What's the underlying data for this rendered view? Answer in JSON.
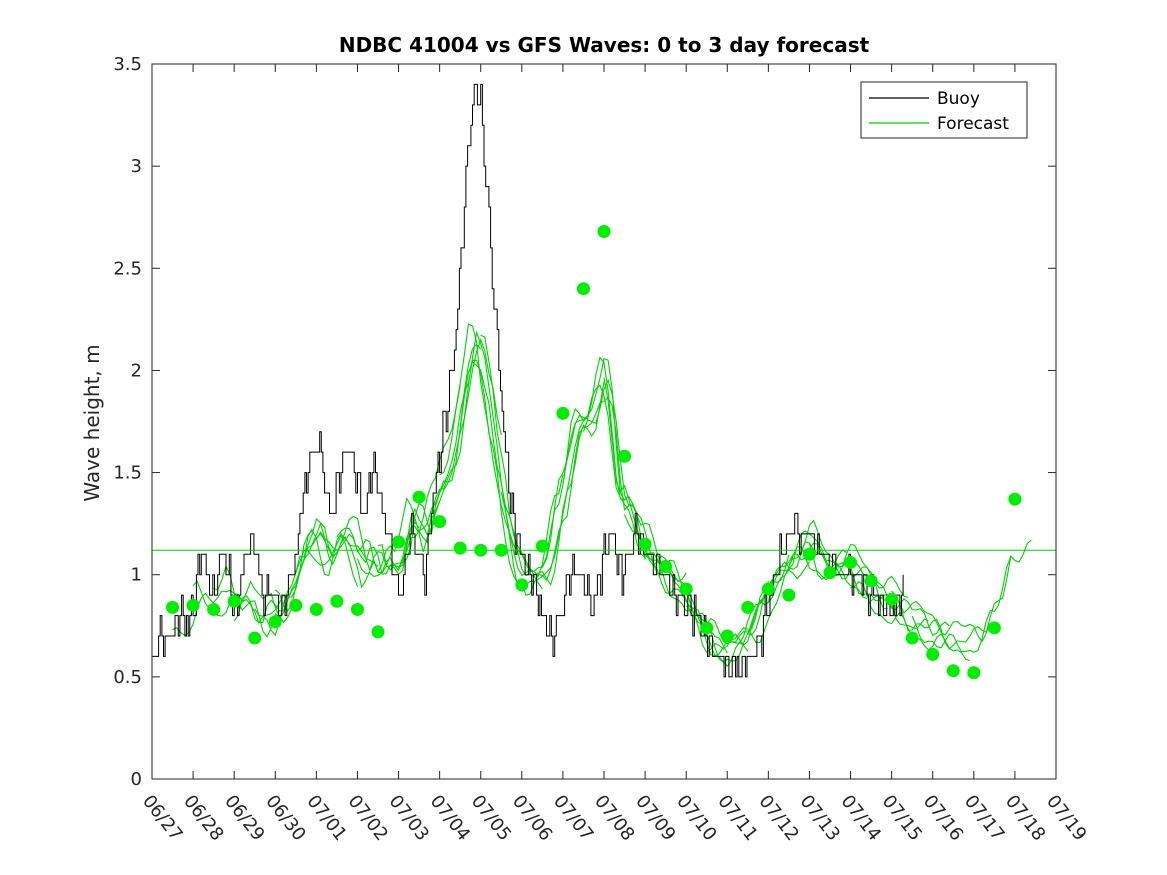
{
  "chart_data": {
    "type": "line",
    "title": "NDBC 41004 vs GFS Waves: 0 to 3 day forecast",
    "xlabel": "",
    "ylabel": "Wave height, m",
    "xlim": [
      "06/27",
      "07/19"
    ],
    "ylim": [
      0,
      3.5
    ],
    "x_ticks": [
      "06/27",
      "06/28",
      "06/29",
      "06/30",
      "07/01",
      "07/02",
      "07/03",
      "07/04",
      "07/05",
      "07/06",
      "07/07",
      "07/08",
      "07/09",
      "07/10",
      "07/11",
      "07/12",
      "07/13",
      "07/14",
      "07/15",
      "07/16",
      "07/17",
      "07/18",
      "07/19"
    ],
    "y_ticks": [
      "0",
      "0.5",
      "1",
      "1.5",
      "2",
      "2.5",
      "3",
      "3.5"
    ],
    "grid": false,
    "legend": {
      "placement": "top-right",
      "entries": [
        "Buoy",
        "Forecast"
      ]
    },
    "colors": {
      "buoy": "#000000",
      "forecast": "#00d400",
      "forecast_markers": "#00ee00"
    },
    "reference_line": {
      "y": 1.12,
      "color": "#00d400"
    },
    "series": [
      {
        "name": "Buoy",
        "x_days": [
          0,
          0.1,
          0.2,
          0.3,
          0.5,
          0.7,
          0.9,
          1.0,
          1.1,
          1.2,
          1.35,
          1.5,
          1.6,
          1.75,
          1.85,
          1.95,
          2.05,
          2.2,
          2.35,
          2.5,
          2.65,
          2.75,
          2.85,
          2.95,
          3.1,
          3.25,
          3.4,
          3.5,
          3.7,
          3.9,
          4.0,
          4.05,
          4.15,
          4.25,
          4.35,
          4.45,
          4.55,
          4.7,
          4.85,
          5.0,
          5.15,
          5.3,
          5.45,
          5.6,
          5.75,
          5.9,
          6.0,
          6.15,
          6.3,
          6.5,
          6.65,
          6.8,
          7.0,
          7.15,
          7.3,
          7.45,
          7.55,
          7.7,
          7.85,
          8.0,
          8.15,
          8.3,
          8.45,
          8.6,
          8.75,
          8.85,
          8.95,
          9.05,
          9.15,
          9.25,
          9.35,
          9.45,
          9.55,
          9.65,
          9.75,
          9.85,
          10.0,
          10.15,
          10.3,
          10.5,
          10.7,
          10.9,
          11.0,
          11.2,
          11.4,
          11.6,
          11.8,
          12.0,
          12.2,
          12.4,
          12.6,
          12.8,
          13.0,
          13.2,
          13.4,
          13.6,
          13.8,
          14.0,
          14.2,
          14.4,
          14.6,
          14.8,
          15.0,
          15.15,
          15.3,
          15.5,
          15.65,
          15.8,
          16.0,
          16.15,
          16.3,
          16.5,
          16.7,
          16.9,
          17.1,
          17.3,
          17.5,
          17.7,
          17.85,
          18.0,
          18.15,
          18.3
        ],
        "values": [
          0.55,
          0.6,
          0.7,
          0.7,
          0.75,
          0.8,
          0.75,
          0.85,
          1.0,
          1.1,
          1.0,
          0.9,
          1.0,
          1.1,
          1.0,
          0.9,
          0.85,
          1.0,
          1.15,
          1.1,
          0.95,
          0.9,
          0.95,
          0.9,
          0.85,
          0.9,
          1.0,
          1.1,
          1.4,
          1.6,
          1.6,
          1.7,
          1.55,
          1.4,
          1.3,
          1.35,
          1.5,
          1.65,
          1.6,
          1.45,
          1.3,
          1.45,
          1.5,
          1.3,
          1.2,
          1.0,
          0.9,
          1.0,
          1.2,
          1.1,
          1.0,
          1.35,
          1.6,
          1.8,
          2.0,
          2.3,
          2.7,
          3.1,
          3.4,
          3.3,
          2.9,
          2.4,
          2.0,
          1.6,
          1.35,
          1.2,
          1.1,
          1.05,
          1.0,
          0.95,
          0.9,
          0.85,
          0.8,
          0.75,
          0.7,
          0.75,
          0.85,
          1.0,
          1.05,
          0.95,
          0.85,
          1.0,
          1.1,
          1.2,
          1.0,
          1.1,
          1.2,
          1.15,
          1.05,
          1.0,
          0.95,
          0.9,
          0.85,
          0.8,
          0.75,
          0.65,
          0.6,
          0.55,
          0.55,
          0.55,
          0.6,
          0.7,
          0.85,
          1.0,
          1.1,
          1.2,
          1.25,
          1.2,
          1.2,
          1.15,
          1.1,
          1.05,
          1.0,
          1.0,
          1.0,
          0.95,
          0.9,
          0.85,
          0.85,
          0.85,
          0.85,
          0.9
        ]
      },
      {
        "name": "Forecast",
        "marker_x_days": [
          0.5,
          1.0,
          1.5,
          2.0,
          2.5,
          3.0,
          3.5,
          4.0,
          4.5,
          5.0,
          5.5,
          6.0,
          6.5,
          7.0,
          7.5,
          8.0,
          8.5,
          9.0,
          9.5,
          10.0,
          10.5,
          11.0,
          11.5,
          12.0,
          12.5,
          13.0,
          13.5,
          14.0,
          14.5,
          15.0,
          15.5,
          16.0,
          16.5,
          17.0,
          17.5,
          18.0,
          18.5,
          19.0,
          19.5,
          20.0,
          20.5,
          21.0
        ],
        "marker_values": [
          0.84,
          0.85,
          0.83,
          0.87,
          0.69,
          0.77,
          0.85,
          0.83,
          0.87,
          0.83,
          0.72,
          1.16,
          1.38,
          1.26,
          1.13,
          1.12,
          1.12,
          0.95,
          1.14,
          1.79,
          2.4,
          2.68,
          1.58,
          1.15,
          1.04,
          0.93,
          0.74,
          0.7,
          0.84,
          0.93,
          0.9,
          1.1,
          1.01,
          1.06,
          0.97,
          0.88,
          0.69,
          0.61,
          0.53,
          0.52,
          0.74,
          1.37
        ]
      }
    ]
  }
}
